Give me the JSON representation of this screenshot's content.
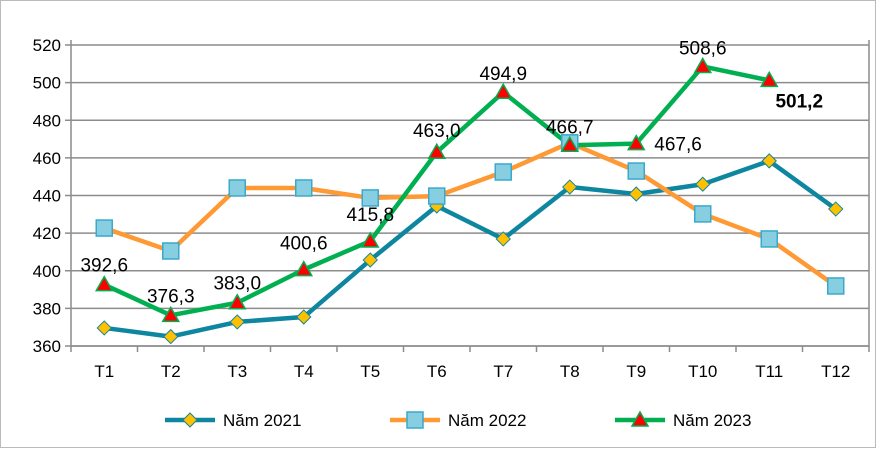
{
  "chart_data": {
    "type": "line",
    "title": "",
    "xlabel": "",
    "ylabel": "",
    "categories": [
      "T1",
      "T2",
      "T3",
      "T4",
      "T5",
      "T6",
      "T7",
      "T8",
      "T9",
      "T10",
      "T11",
      "T12"
    ],
    "ylim": [
      360,
      520
    ],
    "yticks": [
      360,
      380,
      400,
      420,
      440,
      460,
      480,
      500,
      520
    ],
    "grid": true,
    "legend_position": "bottom",
    "series": [
      {
        "name": "Năm 2021",
        "color": "#0E86A0",
        "marker": "diamond",
        "marker_color": "#FFC000",
        "values": [
          369.6,
          365.0,
          372.8,
          375.4,
          405.7,
          434.4,
          416.9,
          444.5,
          440.8,
          446.0,
          458.4,
          432.8
        ]
      },
      {
        "name": "Năm 2022",
        "color": "#FF9933",
        "marker": "square",
        "marker_color": "#87CEE0",
        "values": [
          422.7,
          410.5,
          444.0,
          444.0,
          438.7,
          439.7,
          452.5,
          468.0,
          453.0,
          430.2,
          416.9,
          391.9
        ]
      },
      {
        "name": "Năm 2023",
        "color": "#00B050",
        "marker": "triangle",
        "marker_color": "#FF0000",
        "values": [
          392.6,
          376.3,
          383.0,
          400.6,
          415.8,
          463.0,
          494.9,
          466.7,
          467.6,
          508.6,
          501.2,
          null
        ],
        "data_labels": [
          "392,6",
          "376,3",
          "383,0",
          "400,6",
          "415,8",
          "463,0",
          "494,9",
          "466,7",
          "467,6",
          "508,6",
          "501,2",
          null
        ]
      }
    ]
  }
}
